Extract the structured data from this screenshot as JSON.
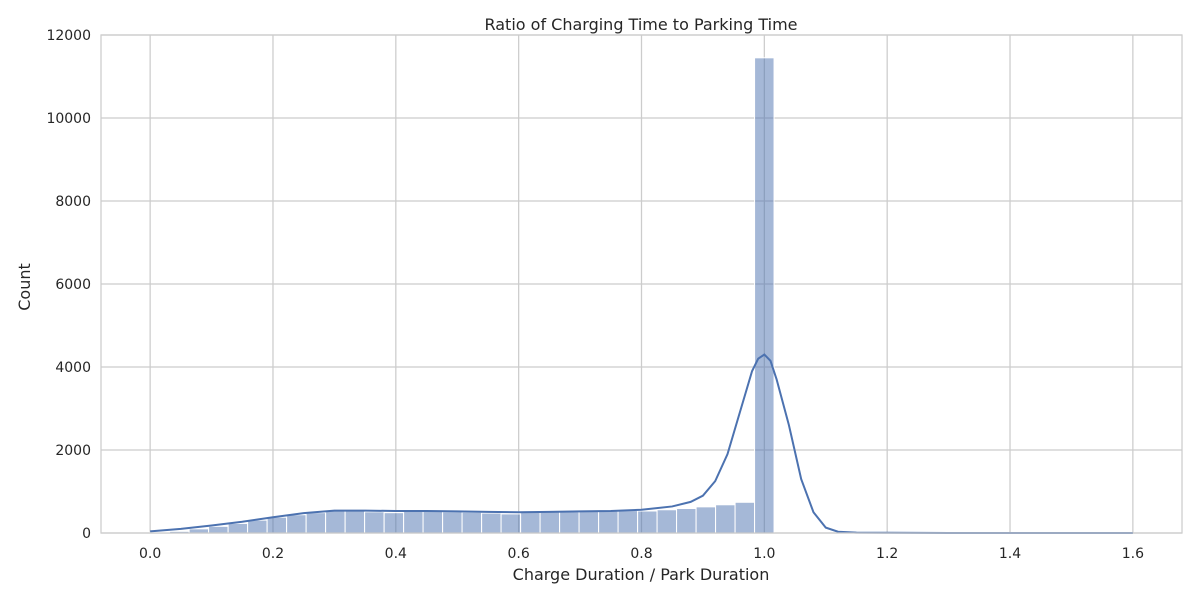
{
  "chart_data": {
    "type": "bar",
    "title": "Ratio of Charging Time to Parking Time",
    "xlabel": "Charge Duration / Park Duration",
    "ylabel": "Count",
    "xlim": [
      -0.08,
      1.68
    ],
    "ylim": [
      0,
      12000
    ],
    "xticks": [
      0.0,
      0.2,
      0.4,
      0.6,
      0.8,
      1.0,
      1.2,
      1.4,
      1.6
    ],
    "xtick_labels": [
      "0.0",
      "0.2",
      "0.4",
      "0.6",
      "0.8",
      "1.0",
      "1.2",
      "1.4",
      "1.6"
    ],
    "yticks": [
      0,
      2000,
      4000,
      6000,
      8000,
      10000,
      12000
    ],
    "ytick_labels": [
      "0",
      "2000",
      "4000",
      "6000",
      "8000",
      "10000",
      "12000"
    ],
    "grid": true,
    "bar_color": "#4c72b0",
    "bar_opacity": 0.5,
    "line_color": "#4c72b0",
    "histogram": {
      "bin_width": 0.0317,
      "bins": [
        {
          "x0": 0.0,
          "count": 20
        },
        {
          "x0": 0.0317,
          "count": 40
        },
        {
          "x0": 0.0635,
          "count": 100
        },
        {
          "x0": 0.0952,
          "count": 160
        },
        {
          "x0": 0.127,
          "count": 230
        },
        {
          "x0": 0.1587,
          "count": 310
        },
        {
          "x0": 0.1905,
          "count": 380
        },
        {
          "x0": 0.2222,
          "count": 440
        },
        {
          "x0": 0.254,
          "count": 490
        },
        {
          "x0": 0.2857,
          "count": 530
        },
        {
          "x0": 0.3175,
          "count": 540
        },
        {
          "x0": 0.3492,
          "count": 510
        },
        {
          "x0": 0.381,
          "count": 490
        },
        {
          "x0": 0.4127,
          "count": 530
        },
        {
          "x0": 0.4444,
          "count": 520
        },
        {
          "x0": 0.4762,
          "count": 510
        },
        {
          "x0": 0.5079,
          "count": 500
        },
        {
          "x0": 0.5397,
          "count": 480
        },
        {
          "x0": 0.5714,
          "count": 460
        },
        {
          "x0": 0.6032,
          "count": 500
        },
        {
          "x0": 0.6349,
          "count": 510
        },
        {
          "x0": 0.6667,
          "count": 510
        },
        {
          "x0": 0.6984,
          "count": 520
        },
        {
          "x0": 0.7302,
          "count": 530
        },
        {
          "x0": 0.7619,
          "count": 540
        },
        {
          "x0": 0.7937,
          "count": 530
        },
        {
          "x0": 0.8254,
          "count": 560
        },
        {
          "x0": 0.8571,
          "count": 590
        },
        {
          "x0": 0.8889,
          "count": 630
        },
        {
          "x0": 0.9206,
          "count": 680
        },
        {
          "x0": 0.9524,
          "count": 740
        },
        {
          "x0": 0.9841,
          "count": 11450
        }
      ]
    },
    "kde": {
      "x": [
        0.0,
        0.05,
        0.1,
        0.15,
        0.2,
        0.25,
        0.3,
        0.35,
        0.4,
        0.45,
        0.5,
        0.55,
        0.6,
        0.65,
        0.7,
        0.75,
        0.8,
        0.85,
        0.88,
        0.9,
        0.92,
        0.94,
        0.96,
        0.98,
        0.99,
        1.0,
        1.01,
        1.02,
        1.04,
        1.06,
        1.08,
        1.1,
        1.12,
        1.15,
        1.2,
        1.3,
        1.4,
        1.5,
        1.6
      ],
      "y": [
        40,
        100,
        180,
        270,
        380,
        480,
        540,
        540,
        530,
        530,
        520,
        510,
        500,
        510,
        520,
        530,
        560,
        640,
        750,
        900,
        1250,
        1900,
        2900,
        3900,
        4200,
        4300,
        4150,
        3700,
        2600,
        1300,
        500,
        130,
        30,
        10,
        5,
        0,
        0,
        0,
        0
      ]
    }
  }
}
